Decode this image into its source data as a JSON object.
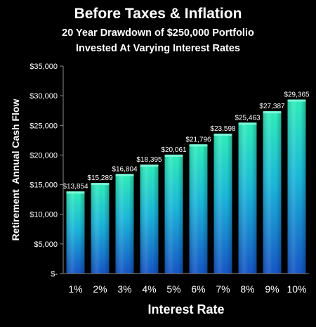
{
  "header": {
    "title": "Before Taxes & Inflation",
    "subtitle_line1": "20 Year Drawdown of $250,000 Portfolio",
    "subtitle_line2": "Invested At Varying Interest Rates"
  },
  "colors": {
    "background": "#000000",
    "bar_top": "#2ff0bc",
    "bar_mid": "#1ab8dc",
    "bar_bottom": "#1556c8",
    "axis": "#8a8a8a",
    "text": "#ffffff"
  },
  "chart_data": {
    "type": "bar",
    "title": "Before Taxes & Inflation",
    "subtitle": "20 Year Drawdown of $250,000 Portfolio Invested At Varying Interest Rates",
    "xlabel": "Interest Rate",
    "ylabel": "Retirement  Annual Cash Flow",
    "categories": [
      "1%",
      "2%",
      "3%",
      "4%",
      "5%",
      "6%",
      "7%",
      "8%",
      "9%",
      "10%"
    ],
    "values": [
      13854,
      15289,
      16804,
      18395,
      20061,
      21796,
      23598,
      25463,
      27387,
      29365
    ],
    "value_labels": [
      "$13,854",
      "$15,289",
      "$16,804",
      "$18,395",
      "$20,061",
      "$21,796",
      "$23,598",
      "$25,463",
      "$27,387",
      "$29,365"
    ],
    "ylim": [
      0,
      35000
    ],
    "yticks": [
      0,
      5000,
      10000,
      15000,
      20000,
      25000,
      30000,
      35000
    ],
    "ytick_labels": [
      "$-",
      "$5,000",
      "$10,000",
      "$15,000",
      "$20,000",
      "$25,000",
      "$30,000",
      "$35,000"
    ],
    "grid": false,
    "legend": "none"
  }
}
